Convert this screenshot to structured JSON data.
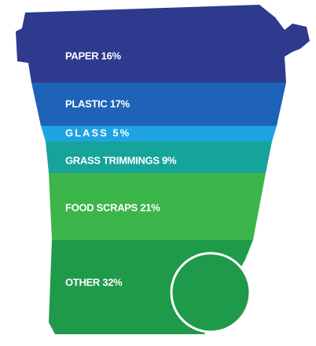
{
  "layers": [
    {
      "label": "PAPER 16%"
    },
    {
      "label": "PLASTIC 17%"
    },
    {
      "label": "GLASS 5%"
    },
    {
      "label": "GRASS TRIMMINGS 9%"
    },
    {
      "label": "FOOD SCRAPS 21%"
    },
    {
      "label": "OTHER 32%"
    }
  ]
}
